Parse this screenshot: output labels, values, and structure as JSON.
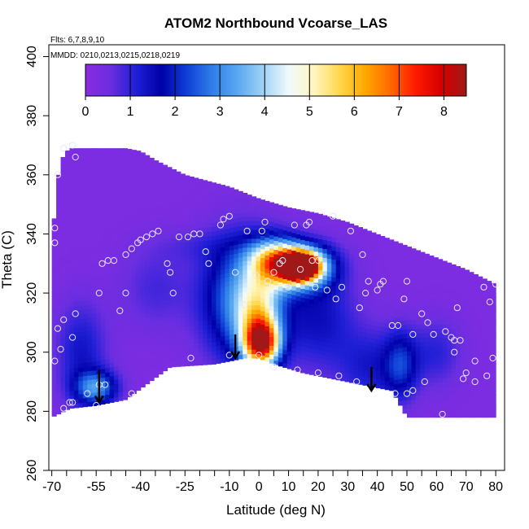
{
  "chart_data": {
    "type": "heatmap",
    "title": "ATOM2 Northbound Vcoarse_LAS",
    "annotations": [
      "Flts: 6,7,8,9,10",
      "MMDD: 0210,0213,0215,0218,0219"
    ],
    "xlabel": "Latitude (deg N)",
    "ylabel": "Theta (C)",
    "xlim": [
      -71,
      83
    ],
    "ylim": [
      260,
      404
    ],
    "x_ticks": [
      -70,
      -65,
      -60,
      -55,
      -50,
      -45,
      -40,
      -35,
      -30,
      -25,
      -20,
      -15,
      -10,
      -5,
      0,
      5,
      10,
      15,
      20,
      25,
      30,
      35,
      40,
      45,
      50,
      55,
      60,
      65,
      70,
      75,
      80
    ],
    "x_tick_labels": [
      "-70",
      "-55",
      "-40",
      "-25",
      "-10",
      "0",
      "10",
      "20",
      "30",
      "40",
      "50",
      "60",
      "70",
      "80"
    ],
    "x_tick_label_values": [
      -70,
      -55,
      -40,
      -25,
      -10,
      0,
      10,
      20,
      30,
      40,
      50,
      60,
      70,
      80
    ],
    "y_ticks": [
      260,
      280,
      300,
      320,
      340,
      360,
      380,
      400
    ],
    "y_tick_labels": [
      "260",
      "280",
      "300",
      "320",
      "340",
      "360",
      "380",
      "400"
    ],
    "colorbar": {
      "ticks": [
        0,
        1,
        2,
        3,
        4,
        5,
        6,
        7,
        8
      ],
      "tick_labels": [
        "0",
        "1",
        "2",
        "3",
        "4",
        "5",
        "6",
        "7",
        "8"
      ],
      "range": [
        0,
        8.5
      ],
      "colors": [
        "#8b2be2",
        "#6a2ee0",
        "#1f1fd6",
        "#0000a8",
        "#1040d8",
        "#2f7fe8",
        "#5aa8f0",
        "#9fd2f6",
        "#f0faff",
        "#fff6bf",
        "#ffd84d",
        "#ffa800",
        "#ff6a00",
        "#ff1a00",
        "#d60000",
        "#a01818"
      ]
    },
    "upper_boundary": [
      [
        -70,
        337
      ],
      [
        -68,
        359
      ],
      [
        -66,
        367
      ],
      [
        -64,
        369
      ],
      [
        -60,
        369
      ],
      [
        -56,
        369
      ],
      [
        -45,
        369
      ],
      [
        -40,
        368
      ],
      [
        -35,
        365
      ],
      [
        -25,
        360
      ],
      [
        -10,
        356
      ],
      [
        0,
        352
      ],
      [
        10,
        349
      ],
      [
        20,
        347
      ],
      [
        30,
        344
      ],
      [
        40,
        340
      ],
      [
        50,
        336
      ],
      [
        60,
        332
      ],
      [
        70,
        328
      ],
      [
        80,
        323
      ]
    ],
    "lower_boundary": [
      [
        -70,
        278
      ],
      [
        -64,
        281
      ],
      [
        -55,
        282
      ],
      [
        -45,
        284
      ],
      [
        -30,
        295
      ],
      [
        -15,
        296
      ],
      [
        -5,
        298
      ],
      [
        0,
        298
      ],
      [
        5,
        296
      ],
      [
        15,
        293
      ],
      [
        25,
        291
      ],
      [
        35,
        289
      ],
      [
        45,
        287
      ],
      [
        50,
        278
      ],
      [
        80,
        278
      ]
    ],
    "field_blobs": [
      {
        "x": -55,
        "y": 288,
        "sx": 5,
        "sy": 4,
        "v": 2.6
      },
      {
        "x": -60,
        "y": 300,
        "sx": 6,
        "sy": 12,
        "v": 1.1
      },
      {
        "x": -35,
        "y": 322,
        "sx": 8,
        "sy": 10,
        "v": 0.6
      },
      {
        "x": -20,
        "y": 336,
        "sx": 10,
        "sy": 4,
        "v": 0.4
      },
      {
        "x": -6,
        "y": 318,
        "sx": 9,
        "sy": 14,
        "v": 2.8
      },
      {
        "x": 0,
        "y": 310,
        "sx": 5,
        "sy": 10,
        "v": 3.4
      },
      {
        "x": 1,
        "y": 303,
        "sx": 4,
        "sy": 5,
        "v": 5.6
      },
      {
        "x": 5,
        "y": 330,
        "sx": 6,
        "sy": 6,
        "v": 3.2
      },
      {
        "x": 8,
        "y": 332,
        "sx": 7,
        "sy": 4,
        "v": 1.8
      },
      {
        "x": 14,
        "y": 329,
        "sx": 4,
        "sy": 3,
        "v": 8.3
      },
      {
        "x": 15,
        "y": 329,
        "sx": 7,
        "sy": 5,
        "v": 4.5
      },
      {
        "x": 20,
        "y": 312,
        "sx": 9,
        "sy": 12,
        "v": 1.2
      },
      {
        "x": 38,
        "y": 295,
        "sx": 8,
        "sy": 9,
        "v": 1.0
      },
      {
        "x": 48,
        "y": 296,
        "sx": 4,
        "sy": 8,
        "v": 1.6
      },
      {
        "x": 60,
        "y": 300,
        "sx": 6,
        "sy": 8,
        "v": 0.8
      }
    ],
    "sample_points": [
      [
        -69,
        337
      ],
      [
        -69,
        342
      ],
      [
        -68,
        360
      ],
      [
        -66,
        369
      ],
      [
        -63,
        370
      ],
      [
        -62,
        366
      ],
      [
        -69,
        297
      ],
      [
        -68,
        308
      ],
      [
        -67,
        301
      ],
      [
        -66,
        311
      ],
      [
        -63,
        305
      ],
      [
        -62,
        313
      ],
      [
        -66,
        281
      ],
      [
        -63,
        283
      ],
      [
        -58,
        286
      ],
      [
        -54,
        289
      ],
      [
        -52,
        289
      ],
      [
        -43,
        286
      ],
      [
        -54,
        320
      ],
      [
        -53,
        330
      ],
      [
        -51,
        331
      ],
      [
        -49,
        331
      ],
      [
        -47,
        314
      ],
      [
        -45,
        320
      ],
      [
        -45,
        333
      ],
      [
        -43,
        335
      ],
      [
        -41,
        337
      ],
      [
        -40,
        338
      ],
      [
        -38,
        339
      ],
      [
        -36,
        340
      ],
      [
        -34,
        341
      ],
      [
        -31,
        330
      ],
      [
        -30,
        327
      ],
      [
        -29,
        320
      ],
      [
        -27,
        339
      ],
      [
        -24,
        339
      ],
      [
        -22,
        340
      ],
      [
        -20,
        340
      ],
      [
        -18,
        334
      ],
      [
        -17,
        330
      ],
      [
        -13,
        343
      ],
      [
        -12,
        345
      ],
      [
        -10,
        346
      ],
      [
        -8,
        327
      ],
      [
        -5,
        316
      ],
      [
        -4,
        341
      ],
      [
        -1,
        326
      ],
      [
        1,
        341
      ],
      [
        2,
        344
      ],
      [
        3,
        324
      ],
      [
        5,
        327
      ],
      [
        7,
        330
      ],
      [
        8,
        331
      ],
      [
        10,
        322
      ],
      [
        12,
        343
      ],
      [
        14,
        328
      ],
      [
        16,
        343
      ],
      [
        17,
        344
      ],
      [
        18,
        331
      ],
      [
        19,
        322
      ],
      [
        20,
        331
      ],
      [
        23,
        321
      ],
      [
        25,
        346
      ],
      [
        26,
        318
      ],
      [
        28,
        322
      ],
      [
        31,
        341
      ],
      [
        34,
        315
      ],
      [
        35,
        333
      ],
      [
        36,
        320
      ],
      [
        37,
        324
      ],
      [
        40,
        321
      ],
      [
        41,
        323
      ],
      [
        42,
        324
      ],
      [
        45,
        309
      ],
      [
        47,
        309
      ],
      [
        49,
        318
      ],
      [
        50,
        324
      ],
      [
        52,
        306
      ],
      [
        55,
        313
      ],
      [
        57,
        310
      ],
      [
        59,
        306
      ],
      [
        63,
        307
      ],
      [
        65,
        305
      ],
      [
        66,
        304
      ],
      [
        67,
        315
      ],
      [
        68,
        304
      ],
      [
        70,
        293
      ],
      [
        73,
        297
      ],
      [
        76,
        322
      ],
      [
        78,
        317
      ],
      [
        80,
        323
      ],
      [
        -23,
        298
      ],
      [
        -10,
        299
      ],
      [
        0,
        299
      ],
      [
        5,
        295
      ],
      [
        13,
        294
      ],
      [
        20,
        293
      ],
      [
        27,
        292
      ],
      [
        33,
        290
      ],
      [
        46,
        286
      ],
      [
        50,
        286
      ],
      [
        52,
        287
      ],
      [
        56,
        290
      ],
      [
        62,
        279
      ],
      [
        66,
        300
      ],
      [
        69,
        291
      ],
      [
        73,
        290
      ],
      [
        77,
        292
      ],
      [
        79,
        298
      ],
      [
        -55,
        282
      ],
      [
        -64,
        283
      ]
    ],
    "arrows": [
      {
        "x": -54,
        "y_from": 294,
        "y_to": 283
      },
      {
        "x": -8,
        "y_from": 306,
        "y_to": 298
      },
      {
        "x": 38,
        "y_from": 295,
        "y_to": 287
      }
    ],
    "grid": false
  }
}
